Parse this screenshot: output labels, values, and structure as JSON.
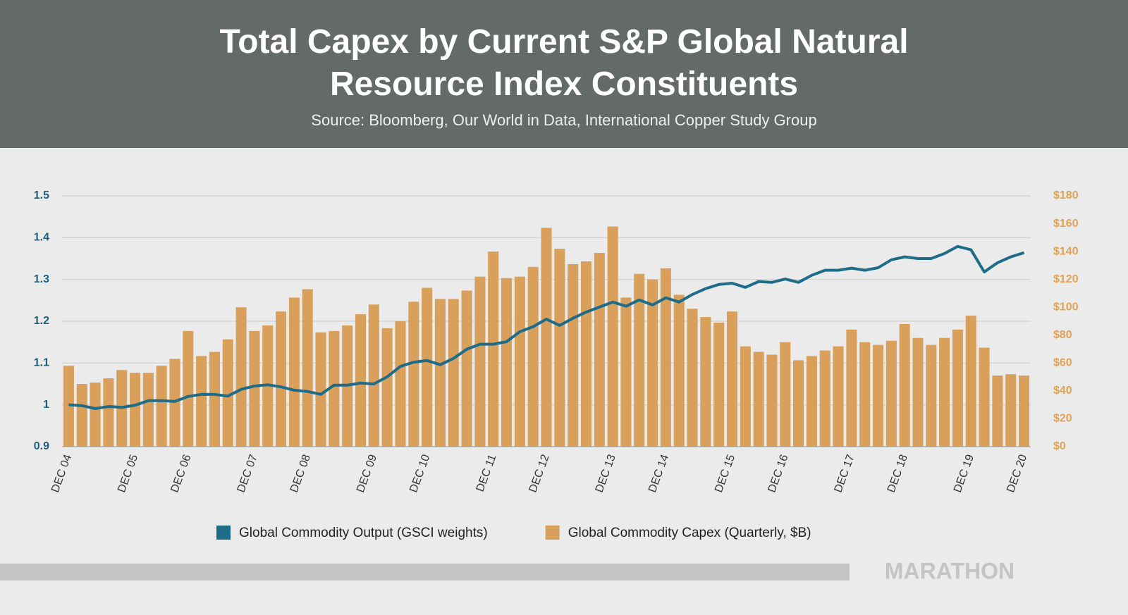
{
  "chart_data": {
    "type": "combo",
    "title": "Total Capex by Current S&P Global Natural Resource Index Constituents",
    "subtitle": "Source: Bloomberg, Our World in Data, International Copper Study Group",
    "categories": [
      "DEC 04",
      null,
      null,
      null,
      null,
      "DEC 05",
      null,
      null,
      null,
      "DEC 06",
      null,
      null,
      null,
      null,
      "DEC 07",
      null,
      null,
      null,
      "DEC 08",
      null,
      null,
      null,
      null,
      "DEC 09",
      null,
      null,
      null,
      "DEC 10",
      null,
      null,
      null,
      null,
      "DEC 11",
      null,
      null,
      null,
      "DEC 12",
      null,
      null,
      null,
      null,
      "DEC 13",
      null,
      null,
      null,
      "DEC 14",
      null,
      null,
      null,
      null,
      "DEC 15",
      null,
      null,
      null,
      "DEC 16",
      null,
      null,
      null,
      null,
      "DEC 17",
      null,
      null,
      null,
      "DEC 18",
      null,
      null,
      null,
      null,
      "DEC 19",
      null,
      null,
      null,
      "DEC 20"
    ],
    "series": [
      {
        "name": "Global Commodity Output (GSCI weights)",
        "type": "line",
        "color": "#1f6b8a",
        "values": [
          1.0,
          0.998,
          0.991,
          0.996,
          0.994,
          0.999,
          1.01,
          1.01,
          1.008,
          1.02,
          1.025,
          1.025,
          1.021,
          1.037,
          1.045,
          1.048,
          1.043,
          1.035,
          1.032,
          1.025,
          1.047,
          1.047,
          1.052,
          1.05,
          1.067,
          1.092,
          1.102,
          1.106,
          1.096,
          1.111,
          1.133,
          1.145,
          1.145,
          1.151,
          1.175,
          1.187,
          1.205,
          1.19,
          1.207,
          1.222,
          1.234,
          1.246,
          1.236,
          1.251,
          1.239,
          1.256,
          1.246,
          1.264,
          1.278,
          1.288,
          1.291,
          1.281,
          1.295,
          1.293,
          1.301,
          1.293,
          1.31,
          1.322,
          1.322,
          1.327,
          1.322,
          1.328,
          1.347,
          1.354,
          1.35,
          1.35,
          1.362,
          1.379,
          1.371,
          1.318,
          1.34,
          1.354,
          1.364
        ]
      },
      {
        "name": "Global Commodity Capex (Quarterly, $B)",
        "type": "bar",
        "axis": "y2",
        "color": "#d9a05b",
        "values": [
          58,
          45,
          46,
          49,
          55,
          53,
          53,
          58,
          63,
          83,
          65,
          68,
          77,
          100,
          83,
          87,
          97,
          107,
          113,
          82,
          83,
          87,
          95,
          102,
          85,
          90,
          104,
          114,
          106,
          106,
          112,
          122,
          140,
          121,
          122,
          129,
          157,
          142,
          131,
          133,
          139,
          158,
          107,
          124,
          120,
          128,
          109,
          99,
          93,
          89,
          97,
          72,
          68,
          66,
          75,
          62,
          65,
          69,
          72,
          84,
          75,
          73,
          76,
          88,
          78,
          73,
          78,
          84,
          94,
          71,
          51,
          52,
          51
        ]
      }
    ],
    "ylim": [
      0.9,
      1.5
    ],
    "yticks": [
      0.9,
      1,
      1.1,
      1.2,
      1.3,
      1.4,
      1.5
    ],
    "y2lim": [
      0,
      180
    ],
    "y2ticks": [
      {
        "value": 0,
        "label": "$0"
      },
      {
        "value": 20,
        "label": "$20"
      },
      {
        "value": 40,
        "label": "$40"
      },
      {
        "value": 60,
        "label": "$60"
      },
      {
        "value": 80,
        "label": "$80"
      },
      {
        "value": 100,
        "label": "$100"
      },
      {
        "value": 120,
        "label": "$120"
      },
      {
        "value": 140,
        "label": "$140"
      },
      {
        "value": 160,
        "label": "$160"
      },
      {
        "value": 180,
        "label": "$180"
      }
    ],
    "grid": true,
    "legend": "bottom"
  },
  "footer": {
    "brand": "MARATHON"
  }
}
